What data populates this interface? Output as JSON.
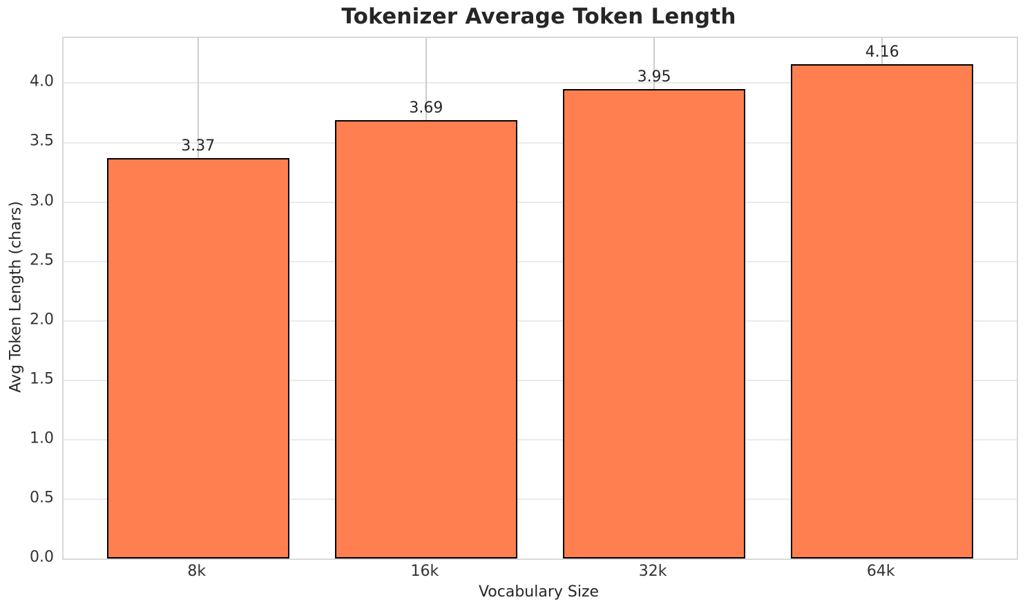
{
  "page": {
    "title": "Tokenizer Average Token Length"
  },
  "chart_data": {
    "type": "bar",
    "title": "Tokenizer Average Token Length",
    "xlabel": "Vocabulary Size",
    "ylabel": "Avg Token Length (chars)",
    "categories": [
      "8k",
      "16k",
      "32k",
      "64k"
    ],
    "values": [
      3.37,
      3.69,
      3.95,
      4.16
    ],
    "bar_labels": [
      "3.37",
      "3.69",
      "3.95",
      "4.16"
    ],
    "ytick_labels": [
      "0.0",
      "0.5",
      "1.0",
      "1.5",
      "2.0",
      "2.5",
      "3.0",
      "3.5",
      "4.0"
    ],
    "ylim": [
      0,
      4.38
    ],
    "xlim": [
      -0.59,
      3.59
    ],
    "bar_width": 0.8,
    "grid": true,
    "legend": null,
    "colors": {
      "bar_fill": "#FF7F50",
      "bar_edge": "#000000",
      "grid_horizontal": "#eaeaea",
      "grid_vertical": "#cccccc",
      "frame": "#d9d9d9",
      "text": "#262626"
    }
  }
}
